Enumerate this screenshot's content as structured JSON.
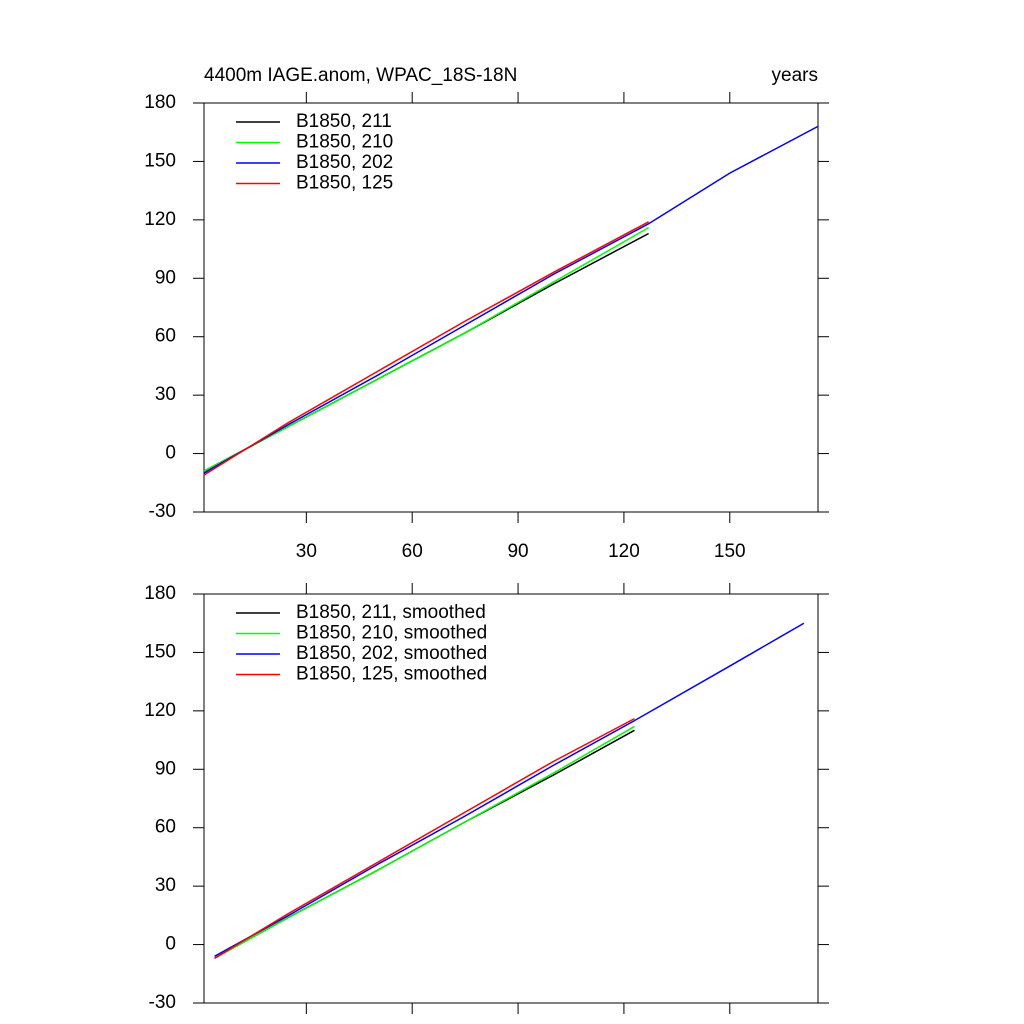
{
  "chart_data": [
    {
      "type": "line",
      "title": "4400m IAGE.anom, WPAC_18S-18N",
      "right_title": "years",
      "x": [
        1,
        25,
        50,
        75,
        100,
        127,
        150,
        175
      ],
      "xlim": [
        1,
        175
      ],
      "ylim": [
        -30,
        180
      ],
      "xticks": [
        30,
        60,
        90,
        120,
        150
      ],
      "xtick_labels": true,
      "yticks": [
        -30,
        0,
        30,
        60,
        90,
        120,
        150,
        180
      ],
      "series": [
        {
          "name": "B1850, 211",
          "color": "#000000",
          "values": [
            -9,
            14,
            38,
            62,
            87,
            113,
            null,
            null
          ]
        },
        {
          "name": "B1850, 210",
          "color": "#00ff00",
          "values": [
            -9,
            14,
            38,
            62,
            88,
            116,
            null,
            null
          ]
        },
        {
          "name": "B1850, 202",
          "color": "#0000ff",
          "values": [
            -10,
            15,
            40,
            66,
            92,
            118,
            144,
            168
          ]
        },
        {
          "name": "B1850, 125",
          "color": "#ff0000",
          "values": [
            -11,
            16,
            42,
            68,
            93,
            119,
            null,
            null
          ]
        }
      ]
    },
    {
      "type": "line",
      "x": [
        4,
        25,
        50,
        75,
        100,
        123,
        150,
        171
      ],
      "xlim": [
        1,
        175
      ],
      "ylim": [
        -30,
        180
      ],
      "xticks": [
        30,
        60,
        90,
        120,
        150
      ],
      "xtick_labels": false,
      "yticks": [
        -30,
        0,
        30,
        60,
        90,
        120,
        150,
        180
      ],
      "series": [
        {
          "name": "B1850, 211, smoothed",
          "color": "#000000",
          "values": [
            -7,
            14,
            38,
            63,
            87,
            110,
            null,
            null
          ]
        },
        {
          "name": "B1850, 210, smoothed",
          "color": "#00ff00",
          "values": [
            -7,
            14,
            38,
            63,
            88,
            112,
            null,
            null
          ]
        },
        {
          "name": "B1850, 202, smoothed",
          "color": "#0000ff",
          "values": [
            -6,
            15,
            41,
            66,
            92,
            115,
            143,
            165
          ]
        },
        {
          "name": "B1850, 125, smoothed",
          "color": "#ff0000",
          "values": [
            -7,
            16,
            42,
            68,
            94,
            116,
            null,
            null
          ]
        }
      ]
    }
  ]
}
